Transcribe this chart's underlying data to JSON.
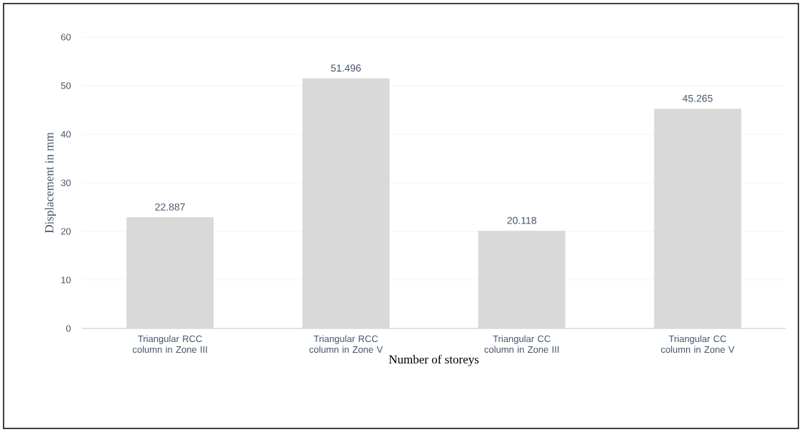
{
  "chart_data": {
    "type": "bar",
    "xlabel": "Number of storeys",
    "ylabel": "Displacement in mm",
    "categories": [
      "Triangular RCC column in Zone III",
      "Triangular RCC column in Zone V",
      "Triangular CC column in Zone III",
      "Triangular CC column in Zone V"
    ],
    "values": [
      22.887,
      51.496,
      20.118,
      45.265
    ],
    "color": "#d9d9d9",
    "ylim": [
      0,
      60
    ],
    "yticks": [
      0,
      10,
      20,
      30,
      40,
      50,
      60
    ],
    "grid": "y",
    "data_labels": true
  }
}
